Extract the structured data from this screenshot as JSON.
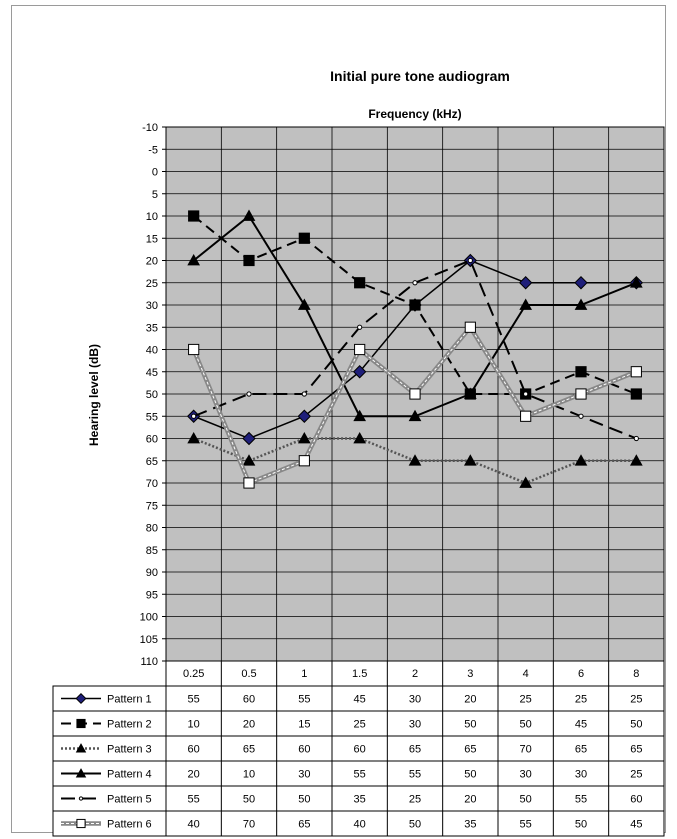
{
  "chart_data": {
    "type": "line",
    "title": "Initial pure tone audiogram",
    "subtitle": "Frequency (kHz)",
    "ylabel": "Hearing level (dB)",
    "ylim": [
      -10,
      110
    ],
    "y_inverted": true,
    "y_tick_step": 5,
    "grid": true,
    "plot_background": "#c0c0c0",
    "categories": [
      "0.25",
      "0.5",
      "1",
      "1.5",
      "2",
      "3",
      "4",
      "6",
      "8"
    ],
    "legend_placement": "data-table",
    "series": [
      {
        "name": "Pattern 1",
        "values": [
          55,
          60,
          55,
          45,
          30,
          20,
          25,
          25,
          25
        ],
        "color": "#000000",
        "marker": "diamond",
        "marker_color": "#1f1f7a",
        "dash": "solid",
        "line_width": 1.5
      },
      {
        "name": "Pattern 2",
        "values": [
          10,
          20,
          15,
          25,
          30,
          50,
          50,
          45,
          50
        ],
        "color": "#000000",
        "marker": "square",
        "marker_color": "#000000",
        "dash": "long-dash",
        "line_width": 2
      },
      {
        "name": "Pattern 3",
        "values": [
          60,
          65,
          60,
          60,
          65,
          65,
          70,
          65,
          65
        ],
        "color": "#555555",
        "marker": "triangle",
        "marker_color": "#000000",
        "dash": "dotted",
        "line_width": 2.5
      },
      {
        "name": "Pattern 4",
        "values": [
          20,
          10,
          30,
          55,
          55,
          50,
          30,
          30,
          25
        ],
        "color": "#000000",
        "marker": "triangle",
        "marker_color": "#000000",
        "dash": "solid",
        "line_width": 2
      },
      {
        "name": "Pattern 5",
        "values": [
          55,
          50,
          50,
          35,
          25,
          20,
          50,
          55,
          60
        ],
        "color": "#000000",
        "marker": "circle",
        "marker_color": "#ffffff",
        "dash": "dash",
        "line_width": 2
      },
      {
        "name": "Pattern 6",
        "values": [
          40,
          70,
          65,
          40,
          50,
          35,
          55,
          50,
          45
        ],
        "color": "#888888",
        "marker": "square",
        "marker_color": "#ffffff",
        "dash": "solid-double",
        "line_width": 3
      }
    ]
  }
}
